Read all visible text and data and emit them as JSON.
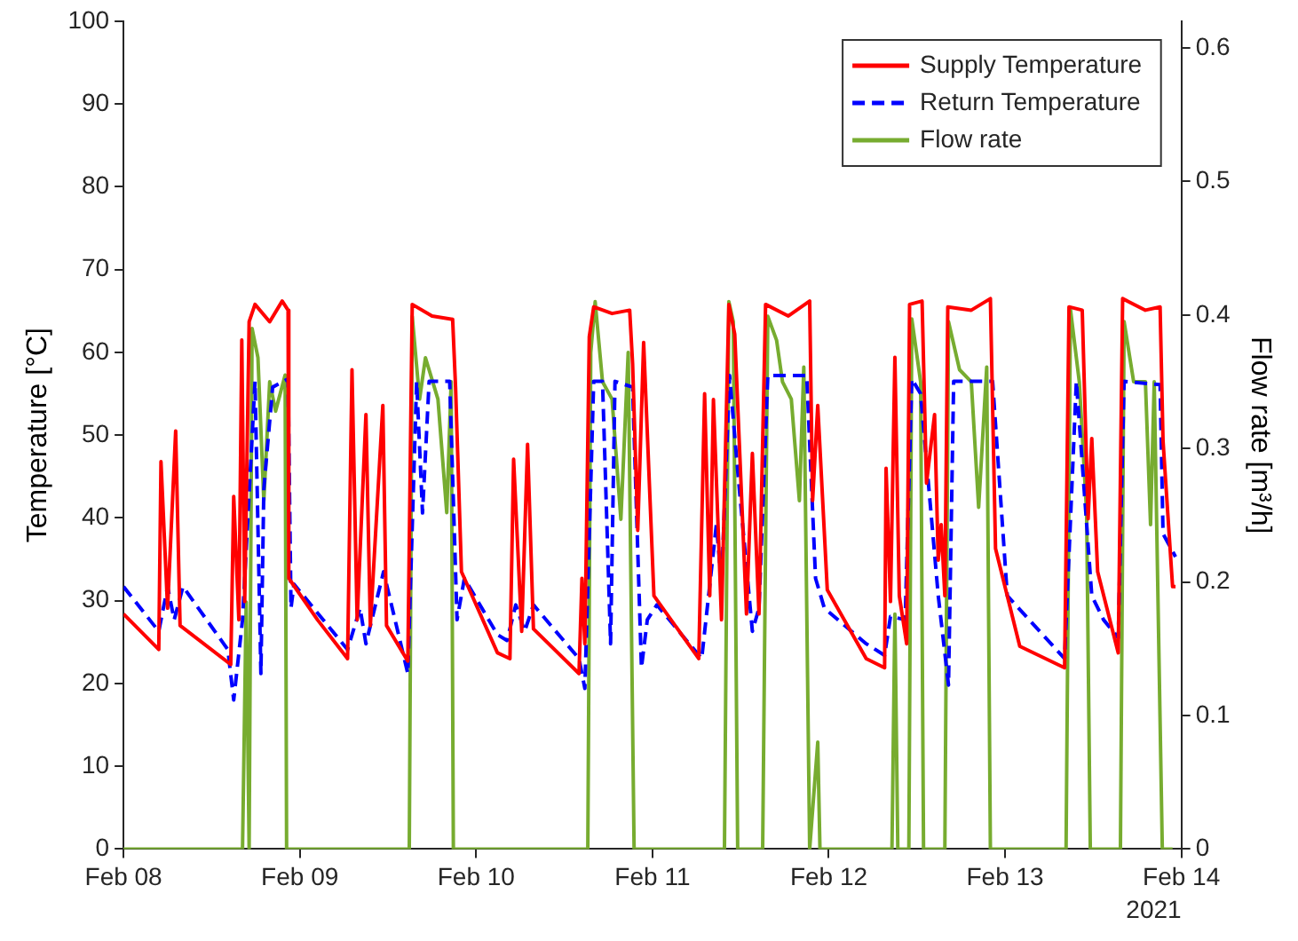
{
  "chart_data": {
    "type": "line",
    "ylabel": "Temperature [°C]",
    "y2label": "Flow rate [m³/h]",
    "xlim": [
      "2021-02-08",
      "2021-02-14"
    ],
    "xticks": [
      {
        "value": "2021-02-08",
        "label": "Feb 08"
      },
      {
        "value": "2021-02-09",
        "label": "Feb 09"
      },
      {
        "value": "2021-02-10",
        "label": "Feb 10"
      },
      {
        "value": "2021-02-11",
        "label": "Feb 11"
      },
      {
        "value": "2021-02-12",
        "label": "Feb 12"
      },
      {
        "value": "2021-02-13",
        "label": "Feb 13"
      },
      {
        "value": "2021-02-14",
        "label": "Feb 14"
      }
    ],
    "ylim": [
      0,
      100
    ],
    "yticks": [
      0,
      10,
      20,
      30,
      40,
      50,
      60,
      70,
      80,
      90,
      100
    ],
    "y2lim": [
      0,
      0.62
    ],
    "y2ticks": [
      0,
      0.1,
      0.2,
      0.3,
      0.4,
      0.5,
      0.6
    ],
    "legend": "top right",
    "marker": "none",
    "annotations": [
      "2021"
    ],
    "series": [
      {
        "name": "Supply Temperature",
        "color": "#ff0000",
        "line_style": "solid",
        "x": [
          "2021-02-08T00:00",
          "2021-02-08T04:48",
          "2021-02-08T05:06",
          "2021-02-08T06:00",
          "2021-02-08T07:06",
          "2021-02-08T07:42",
          "2021-02-08T14:36",
          "2021-02-08T15:00",
          "2021-02-08T15:42",
          "2021-02-08T16:06",
          "2021-02-08T16:30",
          "2021-02-08T17:06",
          "2021-02-08T17:54",
          "2021-02-08T19:54",
          "2021-02-08T21:36",
          "2021-02-08T22:24",
          "2021-02-08T22:30",
          "2021-02-09T02:24",
          "2021-02-09T06:30",
          "2021-02-09T07:06",
          "2021-02-09T07:48",
          "2021-02-09T09:00",
          "2021-02-09T09:36",
          "2021-02-09T11:18",
          "2021-02-09T11:48",
          "2021-02-09T14:42",
          "2021-02-09T15:18",
          "2021-02-09T18:00",
          "2021-02-09T20:48",
          "2021-02-09T21:12",
          "2021-02-09T22:00",
          "2021-02-10T02:54",
          "2021-02-10T04:36",
          "2021-02-10T05:06",
          "2021-02-10T06:12",
          "2021-02-10T07:00",
          "2021-02-10T07:48",
          "2021-02-10T14:00",
          "2021-02-10T14:24",
          "2021-02-10T14:48",
          "2021-02-10T15:24",
          "2021-02-10T16:00",
          "2021-02-10T18:30",
          "2021-02-10T20:54",
          "2021-02-10T21:18",
          "2021-02-10T22:00",
          "2021-02-10T22:48",
          "2021-02-11T00:12",
          "2021-02-11T06:18",
          "2021-02-11T07:06",
          "2021-02-11T07:48",
          "2021-02-11T08:18",
          "2021-02-11T09:24",
          "2021-02-11T10:24",
          "2021-02-11T11:12",
          "2021-02-11T12:48",
          "2021-02-11T13:36",
          "2021-02-11T14:30",
          "2021-02-11T15:24",
          "2021-02-11T18:30",
          "2021-02-11T21:24",
          "2021-02-11T21:48",
          "2021-02-11T22:30",
          "2021-02-11T23:48",
          "2021-02-12T05:06",
          "2021-02-12T07:36",
          "2021-02-12T07:48",
          "2021-02-12T08:24",
          "2021-02-12T09:00",
          "2021-02-12T09:36",
          "2021-02-12T10:36",
          "2021-02-12T11:00",
          "2021-02-12T12:42",
          "2021-02-12T13:18",
          "2021-02-12T14:24",
          "2021-02-12T14:54",
          "2021-02-12T15:18",
          "2021-02-12T15:48",
          "2021-02-12T16:12",
          "2021-02-12T19:24",
          "2021-02-12T22:00",
          "2021-02-12T22:42",
          "2021-02-13T02:00",
          "2021-02-13T08:06",
          "2021-02-13T08:42",
          "2021-02-13T10:30",
          "2021-02-13T11:18",
          "2021-02-13T11:48",
          "2021-02-13T12:36",
          "2021-02-13T15:24",
          "2021-02-13T16:00",
          "2021-02-13T19:06",
          "2021-02-13T21:06",
          "2021-02-13T21:30",
          "2021-02-13T22:48",
          "2021-02-13T23:12"
        ],
        "values": [
          28.4,
          24.1,
          46.8,
          29.1,
          50.5,
          27.0,
          22.3,
          42.6,
          27.7,
          61.5,
          29.9,
          63.7,
          65.8,
          63.7,
          66.2,
          65.1,
          32.7,
          27.7,
          23.0,
          57.9,
          27.7,
          52.5,
          27.0,
          53.6,
          27.0,
          22.7,
          65.8,
          64.4,
          64.0,
          55.8,
          33.5,
          23.7,
          23.0,
          47.1,
          26.3,
          48.9,
          26.6,
          21.2,
          32.7,
          24.8,
          61.9,
          65.5,
          64.7,
          65.1,
          58.6,
          38.5,
          61.2,
          30.6,
          23.0,
          55.0,
          30.6,
          54.3,
          27.7,
          65.8,
          62.2,
          28.4,
          47.8,
          28.4,
          65.8,
          64.4,
          66.2,
          42.1,
          53.6,
          31.3,
          23.0,
          21.9,
          46.0,
          29.9,
          59.4,
          30.6,
          24.8,
          65.8,
          66.2,
          44.2,
          52.5,
          34.9,
          39.2,
          30.6,
          65.5,
          65.1,
          66.5,
          36.3,
          24.5,
          21.9,
          65.5,
          65.1,
          39.9,
          49.6,
          33.5,
          23.7,
          66.5,
          65.1,
          65.5,
          49.3,
          31.7,
          31.7
        ]
      },
      {
        "name": "Return Temperature",
        "color": "#0000ff",
        "line_style": "dashed",
        "x": [
          "2021-02-08T00:00",
          "2021-02-08T04:48",
          "2021-02-08T06:00",
          "2021-02-08T06:54",
          "2021-02-08T08:06",
          "2021-02-08T14:12",
          "2021-02-08T15:00",
          "2021-02-08T16:12",
          "2021-02-08T17:54",
          "2021-02-08T18:42",
          "2021-02-08T19:06",
          "2021-02-08T20:18",
          "2021-02-08T22:24",
          "2021-02-08T22:48",
          "2021-02-08T23:12",
          "2021-02-09T06:30",
          "2021-02-09T08:12",
          "2021-02-09T09:00",
          "2021-02-09T11:24",
          "2021-02-09T14:42",
          "2021-02-09T15:54",
          "2021-02-09T16:42",
          "2021-02-09T17:36",
          "2021-02-09T20:24",
          "2021-02-09T21:24",
          "2021-02-09T22:24",
          "2021-02-10T02:54",
          "2021-02-10T04:12",
          "2021-02-10T05:24",
          "2021-02-10T06:36",
          "2021-02-10T07:48",
          "2021-02-10T14:00",
          "2021-02-10T14:48",
          "2021-02-10T16:00",
          "2021-02-10T17:12",
          "2021-02-10T18:18",
          "2021-02-10T18:54",
          "2021-02-10T21:18",
          "2021-02-10T22:30",
          "2021-02-10T23:18",
          "2021-02-11T00:36",
          "2021-02-11T06:42",
          "2021-02-11T07:54",
          "2021-02-11T08:42",
          "2021-02-11T09:24",
          "2021-02-11T10:30",
          "2021-02-11T11:36",
          "2021-02-11T13:36",
          "2021-02-11T14:30",
          "2021-02-11T15:42",
          "2021-02-11T21:00",
          "2021-02-11T22:12",
          "2021-02-11T23:24",
          "2021-02-12T05:06",
          "2021-02-12T07:36",
          "2021-02-12T08:24",
          "2021-02-12T10:24",
          "2021-02-12T11:18",
          "2021-02-12T12:30",
          "2021-02-12T14:54",
          "2021-02-12T16:18",
          "2021-02-12T17:00",
          "2021-02-12T19:24",
          "2021-02-12T22:18",
          "2021-02-13T00:18",
          "2021-02-13T08:06",
          "2021-02-13T09:42",
          "2021-02-13T11:48",
          "2021-02-13T13:24",
          "2021-02-13T15:24",
          "2021-02-13T16:12",
          "2021-02-13T21:06",
          "2021-02-13T21:30",
          "2021-02-13T23:12"
        ],
        "values": [
          31.7,
          26.3,
          31.7,
          27.7,
          31.7,
          24.1,
          18.0,
          27.7,
          56.5,
          21.2,
          43.5,
          55.8,
          56.8,
          29.1,
          32.0,
          24.1,
          29.1,
          24.8,
          33.5,
          21.2,
          56.5,
          40.6,
          56.5,
          56.5,
          27.7,
          32.7,
          25.9,
          25.2,
          29.5,
          26.3,
          29.5,
          23.0,
          19.4,
          56.5,
          56.5,
          24.8,
          56.5,
          55.8,
          21.9,
          27.7,
          29.5,
          23.0,
          32.7,
          39.2,
          32.0,
          57.2,
          45.7,
          26.3,
          29.1,
          57.2,
          57.2,
          32.7,
          29.1,
          24.8,
          23.4,
          28.1,
          27.7,
          56.8,
          55.0,
          30.6,
          19.8,
          56.5,
          56.5,
          56.5,
          30.6,
          23.0,
          56.5,
          30.6,
          27.7,
          25.5,
          56.5,
          56.1,
          38.1,
          35.3
        ]
      },
      {
        "name": "Flow rate",
        "color": "#77ac30",
        "line_style": "solid",
        "axis": "y2",
        "x": [
          "2021-02-08T00:00",
          "2021-02-08T16:12",
          "2021-02-08T16:42",
          "2021-02-08T17:06",
          "2021-02-08T17:30",
          "2021-02-08T18:18",
          "2021-02-08T19:06",
          "2021-02-08T19:54",
          "2021-02-08T20:42",
          "2021-02-08T22:00",
          "2021-02-08T22:12",
          "2021-02-09T14:54",
          "2021-02-09T15:18",
          "2021-02-09T16:18",
          "2021-02-09T17:06",
          "2021-02-09T18:48",
          "2021-02-09T20:00",
          "2021-02-09T20:36",
          "2021-02-09T20:54",
          "2021-02-10T15:12",
          "2021-02-10T15:36",
          "2021-02-10T16:12",
          "2021-02-10T17:12",
          "2021-02-10T18:30",
          "2021-02-10T19:42",
          "2021-02-10T20:42",
          "2021-02-10T21:30",
          "2021-02-11T09:48",
          "2021-02-11T10:24",
          "2021-02-11T11:00",
          "2021-02-11T11:36",
          "2021-02-11T15:00",
          "2021-02-11T15:42",
          "2021-02-11T16:54",
          "2021-02-11T17:42",
          "2021-02-11T18:54",
          "2021-02-11T20:00",
          "2021-02-11T20:36",
          "2021-02-11T21:24",
          "2021-02-11T22:30",
          "2021-02-11T22:48",
          "2021-02-12T08:36",
          "2021-02-12T09:00",
          "2021-02-12T09:24",
          "2021-02-12T10:54",
          "2021-02-12T11:18",
          "2021-02-12T12:30",
          "2021-02-12T12:54",
          "2021-02-12T15:48",
          "2021-02-12T16:18",
          "2021-02-12T17:48",
          "2021-02-12T19:24",
          "2021-02-12T20:24",
          "2021-02-12T21:30",
          "2021-02-12T22:00",
          "2021-02-13T08:18",
          "2021-02-13T08:54",
          "2021-02-13T10:06",
          "2021-02-13T11:06",
          "2021-02-13T11:36",
          "2021-02-13T15:42",
          "2021-02-13T16:12",
          "2021-02-13T17:30",
          "2021-02-13T19:06",
          "2021-02-13T19:48",
          "2021-02-13T20:18",
          "2021-02-13T21:24",
          "2021-02-13T22:48"
        ],
        "values": [
          0,
          0,
          0.185,
          0,
          0.39,
          0.368,
          0.261,
          0.35,
          0.328,
          0.355,
          0,
          0,
          0.399,
          0.337,
          0.368,
          0.337,
          0.252,
          0.35,
          0,
          0,
          0.372,
          0.41,
          0.35,
          0.337,
          0.247,
          0.372,
          0,
          0,
          0.41,
          0.395,
          0,
          0,
          0.399,
          0.381,
          0.35,
          0.337,
          0.261,
          0.361,
          0,
          0.08,
          0,
          0,
          0.176,
          0,
          0,
          0.397,
          0.35,
          0,
          0,
          0.395,
          0.359,
          0.35,
          0.256,
          0.361,
          0,
          0,
          0.404,
          0.35,
          0.252,
          0,
          0,
          0.395,
          0.35,
          0.35,
          0.243,
          0.35,
          0,
          0
        ]
      }
    ]
  }
}
